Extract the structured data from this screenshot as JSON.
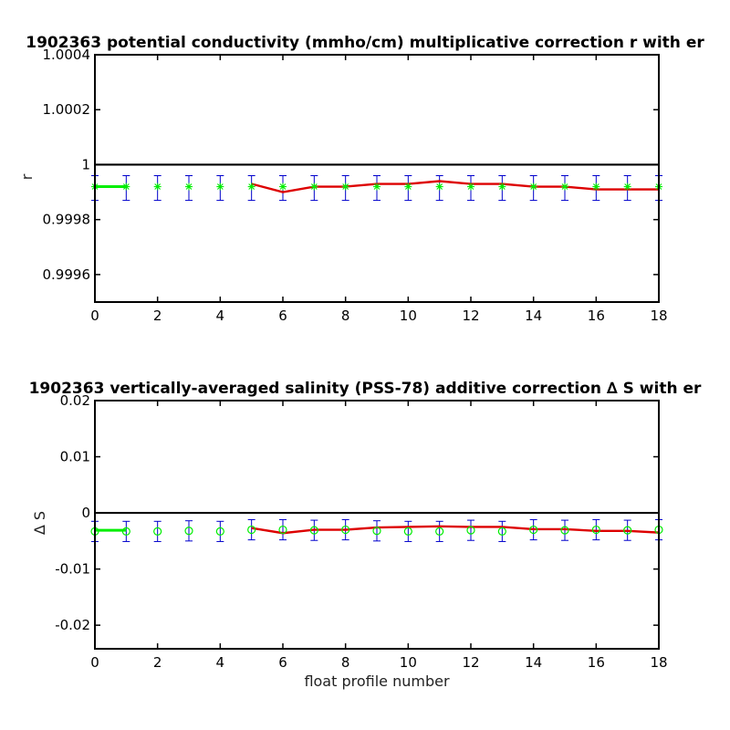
{
  "chart_data": [
    {
      "type": "line",
      "title": "1902363 potential conductivity (mmho/cm) multiplicative correction r with er",
      "xlabel": "",
      "ylabel": "r",
      "xlim": [
        0,
        18
      ],
      "ylim": [
        0.9995,
        1.0004
      ],
      "xticks": [
        "0",
        "2",
        "4",
        "6",
        "8",
        "10",
        "12",
        "14",
        "16",
        "18"
      ],
      "yticks": [
        "0.9996",
        "0.9998",
        "1",
        "1.0002",
        "1.0004"
      ],
      "ytick_values": [
        0.9996,
        0.9998,
        1.0,
        1.0002,
        1.0004
      ],
      "reference_line": 1.0,
      "marker_symbol": "*",
      "x": [
        0,
        1,
        2,
        3,
        4,
        5,
        6,
        7,
        8,
        9,
        10,
        11,
        12,
        13,
        14,
        15,
        16,
        17,
        18
      ],
      "points": [
        0.99992,
        0.99992,
        0.99992,
        0.99992,
        0.99992,
        0.99992,
        0.99992,
        0.99992,
        0.99992,
        0.99992,
        0.99992,
        0.99992,
        0.99992,
        0.99992,
        0.99992,
        0.99992,
        0.99992,
        0.99992,
        0.99992
      ],
      "error_low": [
        0.99987,
        0.99987,
        0.99987,
        0.99987,
        0.99987,
        0.99987,
        0.99987,
        0.99987,
        0.99987,
        0.99987,
        0.99987,
        0.99987,
        0.99987,
        0.99987,
        0.99987,
        0.99987,
        0.99987,
        0.99987,
        0.99987
      ],
      "error_high": [
        0.99996,
        0.99996,
        0.99996,
        0.99996,
        0.99996,
        0.99996,
        0.99996,
        0.99996,
        0.99996,
        0.99996,
        0.99996,
        0.99996,
        0.99996,
        0.99996,
        0.99996,
        0.99996,
        0.99996,
        0.99996,
        0.99996
      ],
      "green_line_x": [
        0,
        1
      ],
      "green_line_y": [
        0.99992,
        0.99992
      ],
      "red_line_x": [
        5,
        6,
        7,
        8,
        9,
        10,
        11,
        12,
        13,
        14,
        15,
        16,
        17,
        18
      ],
      "red_line_y": [
        0.99993,
        0.9999,
        0.99992,
        0.99992,
        0.99993,
        0.99993,
        0.99994,
        0.99993,
        0.99993,
        0.99992,
        0.99992,
        0.99991,
        0.99991,
        0.99991
      ],
      "colors": {
        "points": "#00ee00",
        "errorbars": "#0000cc",
        "red_line": "#dd0000",
        "green_line": "#00ee00",
        "reference": "#000000"
      }
    },
    {
      "type": "line",
      "title": "1902363 vertically-averaged salinity (PSS-78) additive correction ∆ S with er",
      "xlabel": "float profile number",
      "ylabel": "∆ S",
      "xlim": [
        0,
        18
      ],
      "ylim": [
        -0.0242,
        0.02
      ],
      "xticks": [
        "0",
        "2",
        "4",
        "6",
        "8",
        "10",
        "12",
        "14",
        "16",
        "18"
      ],
      "yticks": [
        "-0.02",
        "-0.01",
        "0",
        "0.01",
        "0.02"
      ],
      "ytick_values": [
        -0.02,
        -0.01,
        0.0,
        0.01,
        0.02
      ],
      "reference_line": 0.0,
      "marker_symbol": "o",
      "x": [
        0,
        1,
        2,
        3,
        4,
        5,
        6,
        7,
        8,
        9,
        10,
        11,
        12,
        13,
        14,
        15,
        16,
        17,
        18
      ],
      "points": [
        -0.0033,
        -0.0033,
        -0.0033,
        -0.0032,
        -0.0033,
        -0.003,
        -0.003,
        -0.0031,
        -0.003,
        -0.0032,
        -0.0033,
        -0.0033,
        -0.0031,
        -0.0033,
        -0.003,
        -0.0031,
        -0.003,
        -0.0031,
        -0.003
      ],
      "error_low": [
        -0.0051,
        -0.0051,
        -0.0051,
        -0.005,
        -0.0051,
        -0.0048,
        -0.0048,
        -0.0049,
        -0.0048,
        -0.005,
        -0.0051,
        -0.0051,
        -0.0049,
        -0.0051,
        -0.0048,
        -0.0049,
        -0.0048,
        -0.0049,
        -0.0048
      ],
      "error_high": [
        -0.0015,
        -0.0015,
        -0.0015,
        -0.0014,
        -0.0015,
        -0.0012,
        -0.0012,
        -0.0013,
        -0.0012,
        -0.0014,
        -0.0015,
        -0.0015,
        -0.0013,
        -0.0015,
        -0.0012,
        -0.0013,
        -0.0012,
        -0.0013,
        -0.0012
      ],
      "green_line_x": [
        0,
        1
      ],
      "green_line_y": [
        -0.0031,
        -0.0031
      ],
      "red_line_x": [
        5,
        6,
        7,
        8,
        9,
        10,
        11,
        12,
        13,
        14,
        15,
        16,
        17,
        18
      ],
      "red_line_y": [
        -0.0027,
        -0.0036,
        -0.003,
        -0.003,
        -0.0026,
        -0.0025,
        -0.0024,
        -0.0025,
        -0.0025,
        -0.0029,
        -0.0029,
        -0.0032,
        -0.0032,
        -0.0035
      ],
      "colors": {
        "points": "#00ee00",
        "errorbars": "#0000cc",
        "red_line": "#dd0000",
        "green_line": "#00ee00",
        "reference": "#000000"
      }
    }
  ]
}
